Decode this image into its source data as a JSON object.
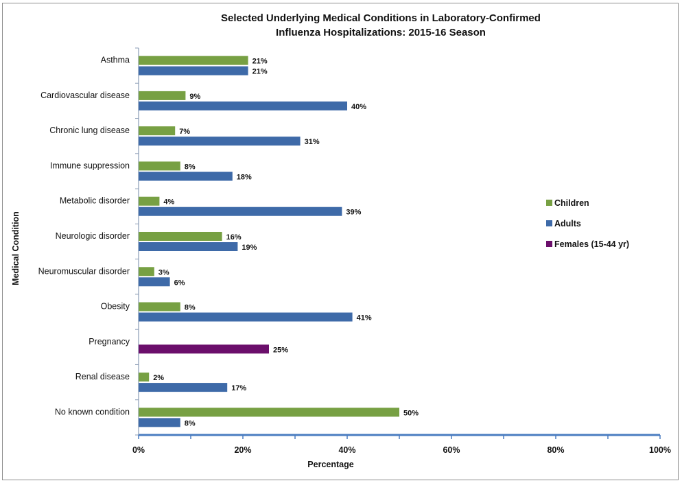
{
  "chart_data": {
    "type": "bar",
    "orientation": "horizontal",
    "title_line1": "Selected Underlying Medical Conditions in Laboratory-Confirmed",
    "title_line2": "Influenza Hospitalizations: 2015-16 Season",
    "xlabel": "Percentage",
    "ylabel": "Medical Condition",
    "xlim": [
      0,
      100
    ],
    "x_ticks": [
      "0%",
      "20%",
      "40%",
      "60%",
      "80%",
      "100%"
    ],
    "categories": [
      "Asthma",
      "Cardiovascular disease",
      "Chronic lung disease",
      "Immune suppression",
      "Metabolic disorder",
      "Neurologic disorder",
      "Neuromuscular disorder",
      "Obesity",
      "Pregnancy",
      "Renal disease",
      "No known  condition"
    ],
    "series": [
      {
        "name": "Children",
        "color": "#77a043",
        "values": [
          21,
          9,
          7,
          8,
          4,
          16,
          3,
          8,
          null,
          2,
          50
        ],
        "labels": [
          "21%",
          "9%",
          "7%",
          "8%",
          "4%",
          "16%",
          "3%",
          "8%",
          null,
          "2%",
          "50%"
        ]
      },
      {
        "name": "Adults",
        "color": "#3e6aa8",
        "values": [
          21,
          40,
          31,
          18,
          39,
          19,
          6,
          41,
          null,
          17,
          8
        ],
        "labels": [
          "21%",
          "40%",
          "31%",
          "18%",
          "39%",
          "19%",
          "6%",
          "41%",
          null,
          "17%",
          "8%"
        ]
      },
      {
        "name": "Females (15-44 yr)",
        "color": "#6b0f6b",
        "values": [
          null,
          null,
          null,
          null,
          null,
          null,
          null,
          null,
          25,
          null,
          null
        ],
        "labels": [
          null,
          null,
          null,
          null,
          null,
          null,
          null,
          null,
          "25%",
          null,
          null
        ]
      }
    ],
    "legend_position": "right",
    "grid": false
  }
}
